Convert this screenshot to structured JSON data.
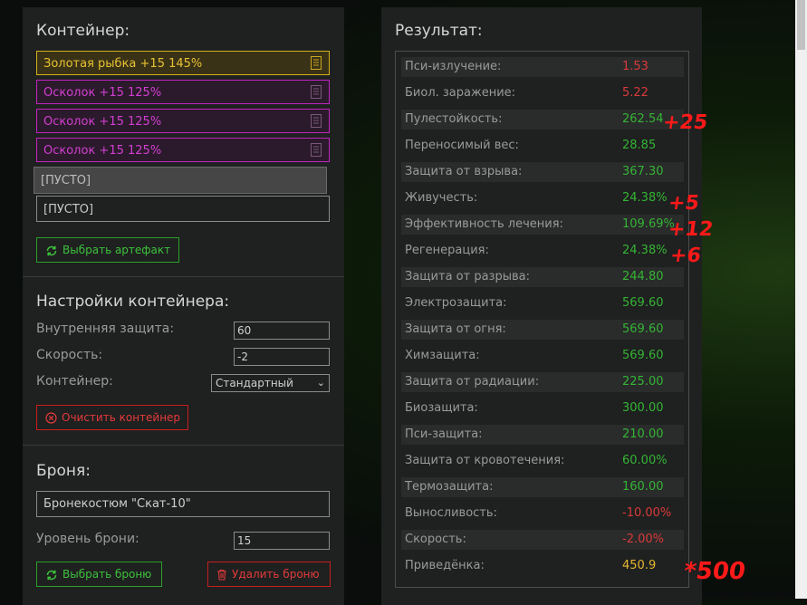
{
  "container": {
    "title": "Контейнер:",
    "slots": [
      {
        "label": "Золотая рыбка +15 145%",
        "type": "gold"
      },
      {
        "label": "Осколок +15 125%",
        "type": "pink"
      },
      {
        "label": "Осколок +15 125%",
        "type": "pink"
      },
      {
        "label": "Осколок +15 125%",
        "type": "pink"
      },
      {
        "label": "[ПУСТО]",
        "type": "empty-dark"
      },
      {
        "label": "[ПУСТО]",
        "type": "empty"
      }
    ],
    "select_artifact_label": "Выбрать артефакт"
  },
  "container_settings": {
    "title": "Настройки контейнера:",
    "inner_protection_label": "Внутренняя защита:",
    "inner_protection_value": "60",
    "speed_label": "Скорость:",
    "speed_value": "-2",
    "container_label": "Контейнер:",
    "container_value": "Стандартный",
    "clear_label": "Очистить контейнер"
  },
  "armor": {
    "title": "Броня:",
    "name": "Бронекостюм \"Скат-10\"",
    "level_label": "Уровень брони:",
    "level_value": "15",
    "select_label": "Выбрать броню",
    "delete_label": "Удалить броню"
  },
  "results": {
    "title": "Результат:",
    "rows": [
      {
        "name": "Пси-излучение:",
        "value": "1.53",
        "color": "red"
      },
      {
        "name": "Биол. заражение:",
        "value": "5.22",
        "color": "red"
      },
      {
        "name": "Пулестойкость:",
        "value": "262.54",
        "color": "green"
      },
      {
        "name": "Переносимый вес:",
        "value": "28.85",
        "color": "green"
      },
      {
        "name": "Защита от взрыва:",
        "value": "367.30",
        "color": "green"
      },
      {
        "name": "Живучесть:",
        "value": "24.38%",
        "color": "green"
      },
      {
        "name": "Эффективность лечения:",
        "value": "109.69%",
        "color": "green"
      },
      {
        "name": "Регенерация:",
        "value": "24.38%",
        "color": "green"
      },
      {
        "name": "Защита от разрыва:",
        "value": "244.80",
        "color": "green"
      },
      {
        "name": "Электрозащита:",
        "value": "569.60",
        "color": "green"
      },
      {
        "name": "Защита от огня:",
        "value": "569.60",
        "color": "green"
      },
      {
        "name": "Химзащита:",
        "value": "569.60",
        "color": "green"
      },
      {
        "name": "Защита от радиации:",
        "value": "225.00",
        "color": "green"
      },
      {
        "name": "Биозащита:",
        "value": "300.00",
        "color": "green"
      },
      {
        "name": "Пси-защита:",
        "value": "210.00",
        "color": "green"
      },
      {
        "name": "Защита от кровотечения:",
        "value": "60.00%",
        "color": "green"
      },
      {
        "name": "Термозащита:",
        "value": "160.00",
        "color": "green"
      },
      {
        "name": "Выносливость:",
        "value": "-10.00%",
        "color": "red"
      },
      {
        "name": "Скорость:",
        "value": "-2.00%",
        "color": "red"
      },
      {
        "name": "Приведёнка:",
        "value": "450.9",
        "color": "gold"
      }
    ]
  },
  "annotations": [
    "+25",
    "+5",
    "+12",
    "+6",
    "*500"
  ],
  "colors": {
    "gold": "#e6b832",
    "pink": "#d23fd2",
    "green": "#34b534",
    "red": "#d93a3a",
    "panel": "#1f2020"
  }
}
